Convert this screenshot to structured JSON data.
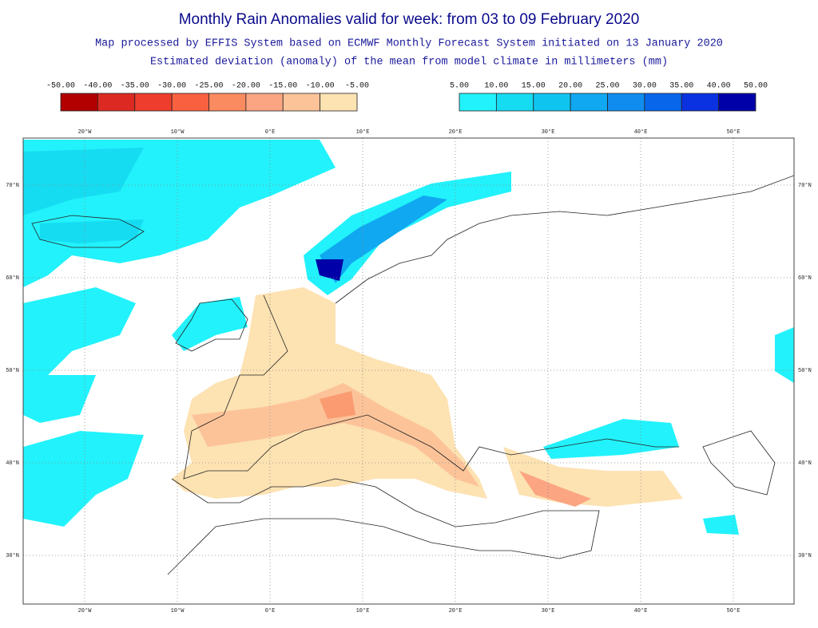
{
  "title": "Monthly Rain Anomalies valid for week: from 03 to 09 February 2020",
  "subtitle_1": "Map processed by EFFIS System based on ECMWF Monthly Forecast System initiated on 13 January 2020",
  "subtitle_2": "Estimated deviation (anomaly) of the mean from model climate in millimeters (mm)",
  "legend": {
    "negative": {
      "labels": [
        "-50.00",
        "-40.00",
        "-35.00",
        "-30.00",
        "-25.00",
        "-20.00",
        "-15.00",
        "-10.00",
        "-5.00"
      ],
      "colors": [
        "#b20000",
        "#dc2a22",
        "#ee3d2c",
        "#f8603f",
        "#fa8a60",
        "#fba582",
        "#fcc399",
        "#fde2b2"
      ]
    },
    "positive": {
      "labels": [
        "5.00",
        "10.00",
        "15.00",
        "20.00",
        "25.00",
        "30.00",
        "35.00",
        "40.00",
        "50.00"
      ],
      "colors": [
        "#22f2fb",
        "#16dcf2",
        "#10c4f0",
        "#10a8f0",
        "#108cee",
        "#0866ea",
        "#0a32e0",
        "#0000a8"
      ]
    }
  },
  "map": {
    "longitudes": [
      "20°W",
      "10°W",
      "0°E",
      "10°E",
      "20°E",
      "30°E",
      "40°E",
      "50°E"
    ],
    "latitudes": [
      "70°N",
      "60°N",
      "50°N",
      "40°N",
      "30°N"
    ]
  }
}
